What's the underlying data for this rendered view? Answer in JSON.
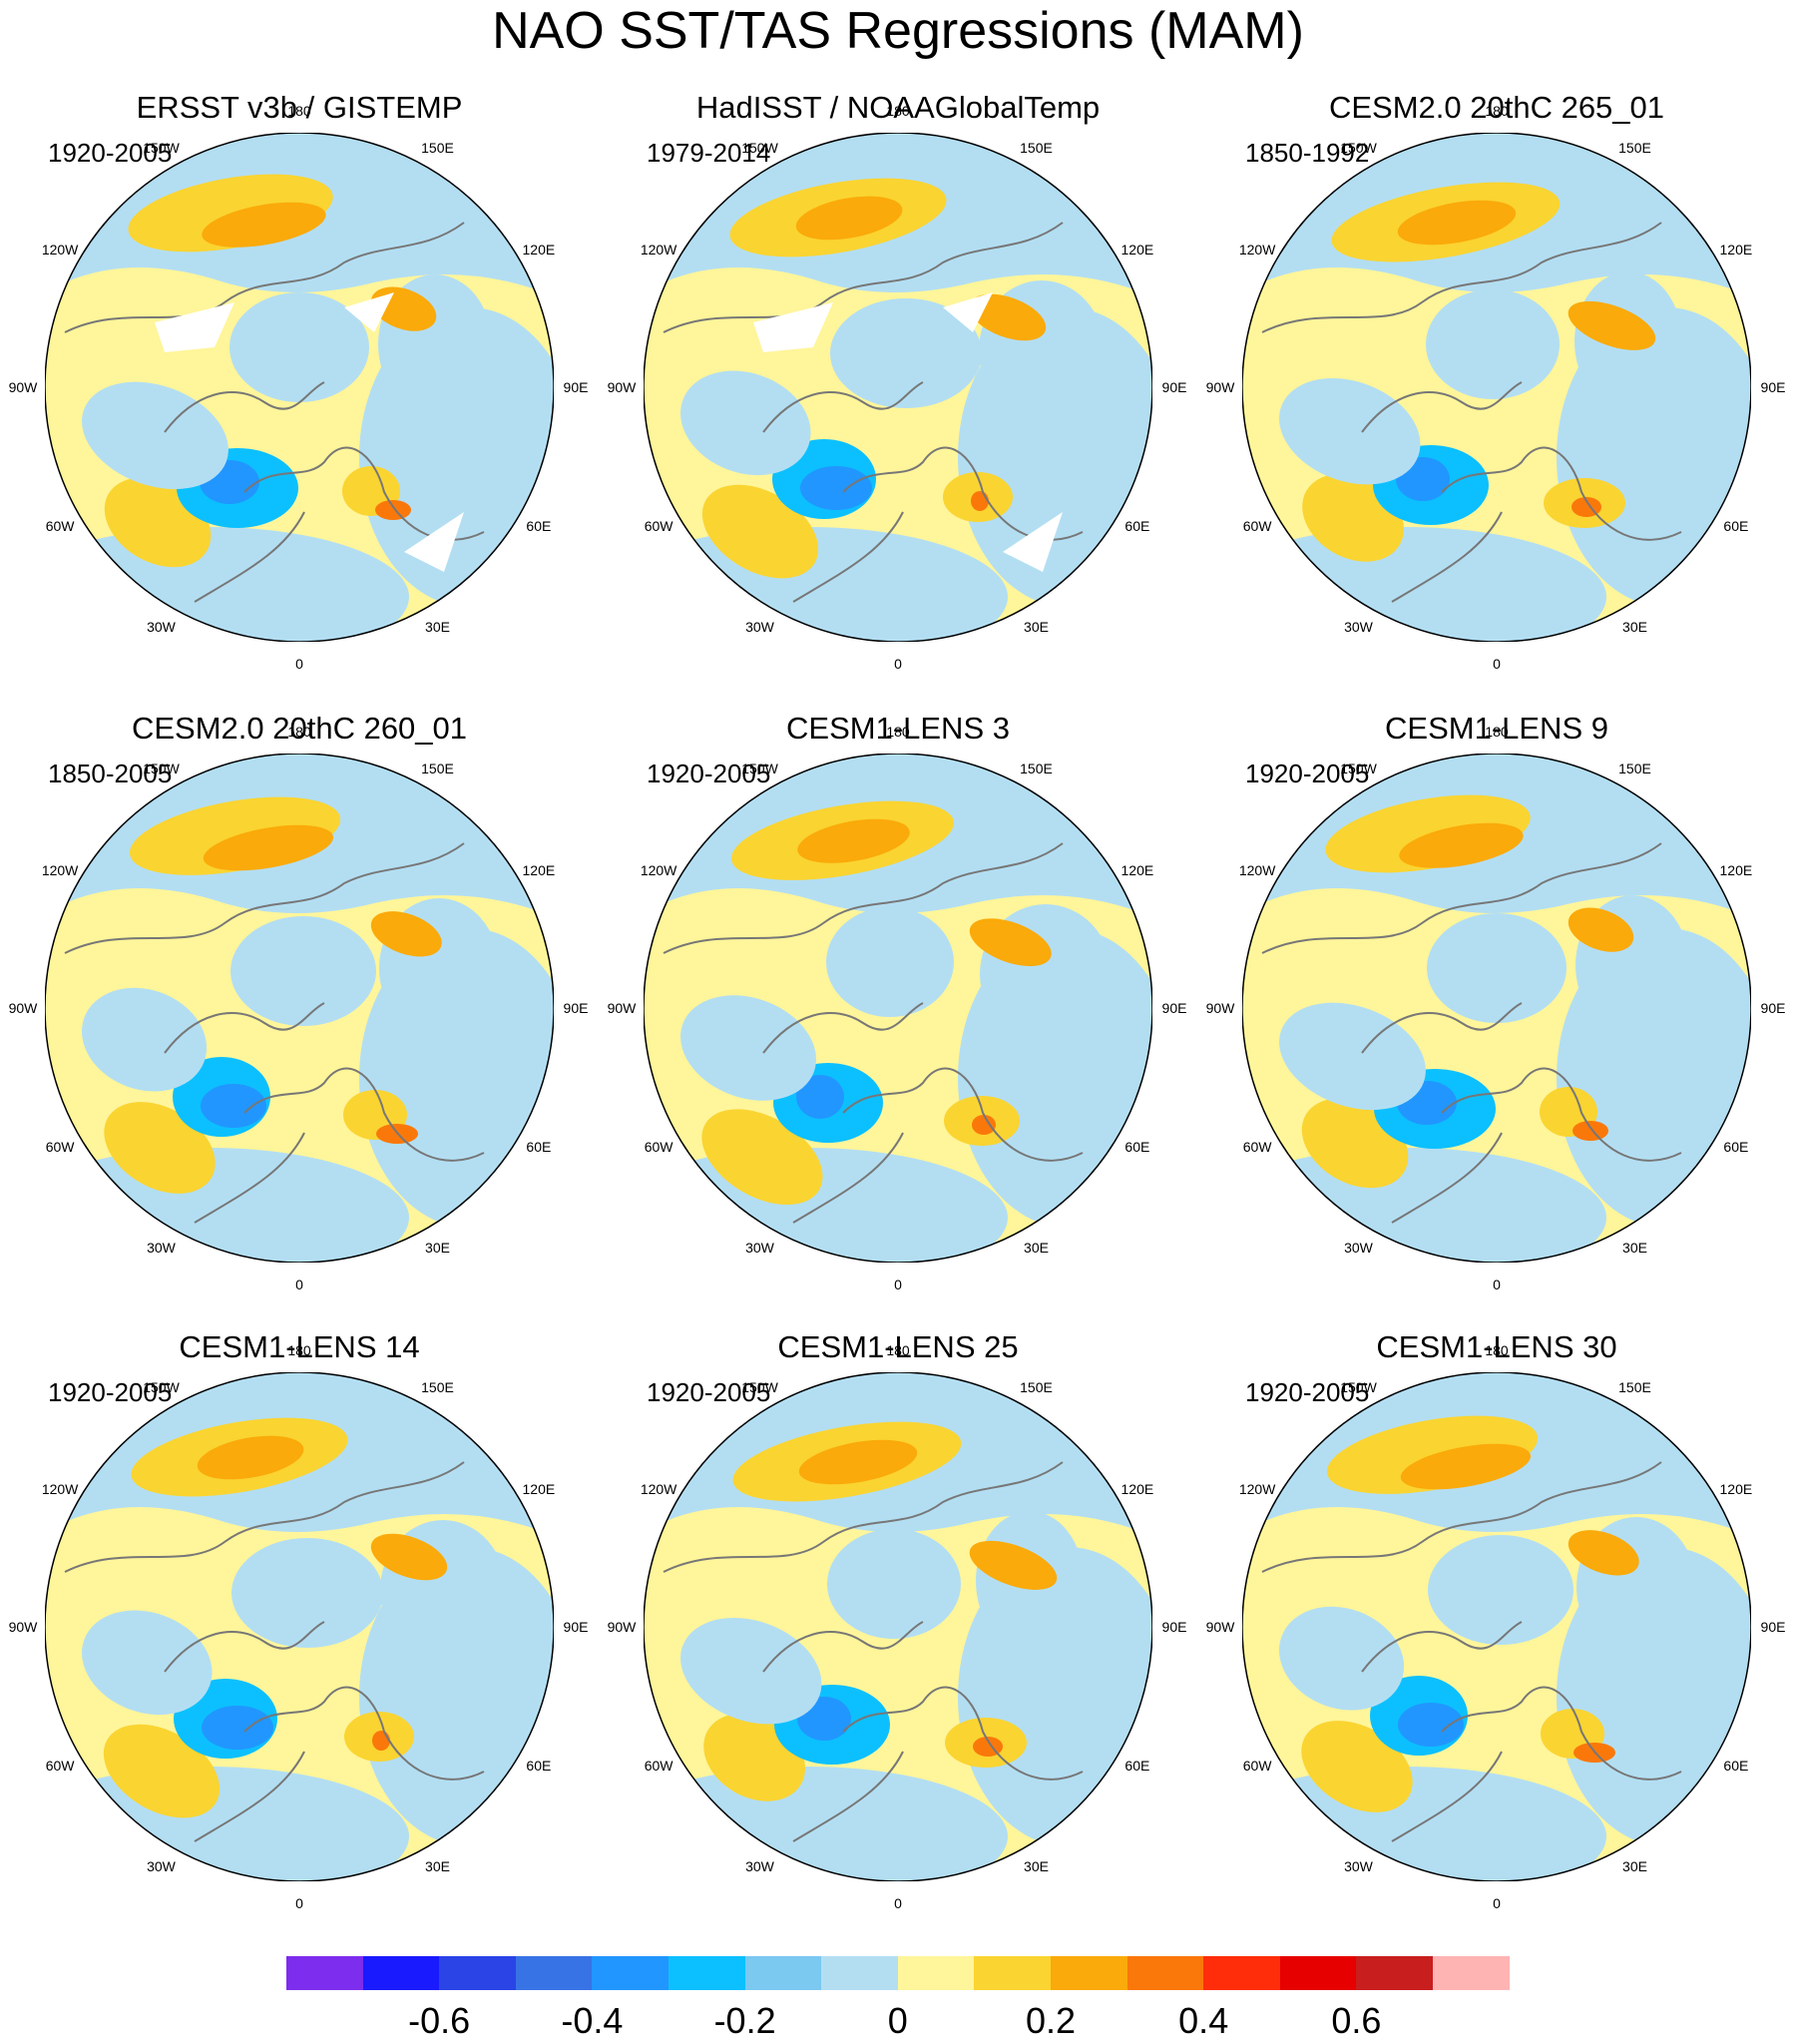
{
  "title": "NAO SST/TAS Regressions (MAM)",
  "longitude_labels": [
    "180",
    "150E",
    "120E",
    "90E",
    "60E",
    "30E",
    "0",
    "30W",
    "60W",
    "90W",
    "120W",
    "150W"
  ],
  "panels": [
    {
      "title": "ERSST v3b / GISTEMP",
      "period": "1920-2005",
      "has_missing_data": true
    },
    {
      "title": "HadISST / NOAAGlobalTemp",
      "period": "1979-2014",
      "has_missing_data": true
    },
    {
      "title": "CESM2.0 20thC 265_01",
      "period": "1850-1992",
      "has_missing_data": false
    },
    {
      "title": "CESM2.0 20thC 260_01",
      "period": "1850-2005",
      "has_missing_data": false
    },
    {
      "title": "CESM1-LENS 3",
      "period": "1920-2005",
      "has_missing_data": false
    },
    {
      "title": "CESM1-LENS 9",
      "period": "1920-2005",
      "has_missing_data": false
    },
    {
      "title": "CESM1-LENS 14",
      "period": "1920-2005",
      "has_missing_data": false
    },
    {
      "title": "CESM1-LENS 25",
      "period": "1920-2005",
      "has_missing_data": false
    },
    {
      "title": "CESM1-LENS 30",
      "period": "1920-2005",
      "has_missing_data": false
    }
  ],
  "colorbar": {
    "colors": [
      "#7d2ded",
      "#1a1aff",
      "#2b44e6",
      "#3873e6",
      "#2196ff",
      "#0cc0ff",
      "#7bc8f0",
      "#b3def2",
      "#fff59a",
      "#fad431",
      "#faaa0a",
      "#fa780a",
      "#ff2d0a",
      "#e60000",
      "#c81e1e",
      "#ffb4b4"
    ],
    "tick_labels": [
      "-0.6",
      "-0.4",
      "-0.2",
      "0",
      "0.2",
      "0.4",
      "0.6"
    ],
    "tick_values": [
      -0.6,
      -0.4,
      -0.2,
      0,
      0.2,
      0.4,
      0.6
    ],
    "levels": [
      -0.7,
      -0.6,
      -0.5,
      -0.4,
      -0.3,
      -0.2,
      -0.1,
      0,
      0.1,
      0.2,
      0.3,
      0.4,
      0.5,
      0.6,
      0.7
    ]
  }
}
